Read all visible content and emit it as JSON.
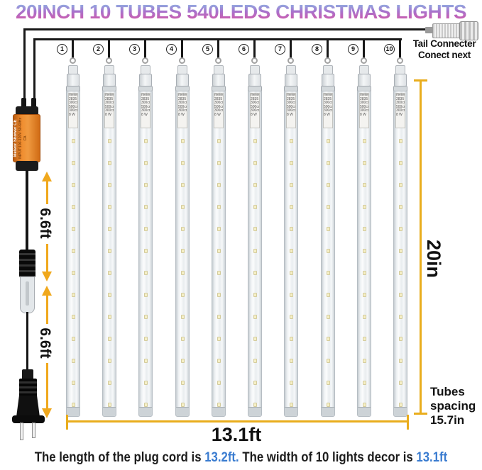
{
  "title": "20INCH 10 TUBES 540LEDS CHRISTMAS LIGHTS",
  "tail_connector": {
    "line1": "Tail Connecter",
    "line2": "Conect next"
  },
  "tubes": {
    "count": 10,
    "numbers": [
      "1",
      "2",
      "3",
      "4",
      "5",
      "6",
      "7",
      "8",
      "9",
      "10"
    ],
    "label_lines": [
      "meteor",
      "2835 S",
      "300cm",
      "500cm",
      "300cm",
      "8 W"
    ]
  },
  "adapter": {
    "brand": "Meteor Shower CE",
    "specs": "INPUT:100-120V 50-60Hz CA"
  },
  "measurements": {
    "cord_segment1": "6.6ft",
    "cord_segment2": "6.6ft",
    "tube_length": "20in",
    "total_width": "13.1ft",
    "spacing_label": [
      "Tubes",
      "spacing",
      "15.7in"
    ]
  },
  "footer": {
    "part1": "The length of the plug cord is ",
    "value1": "13.2ft.",
    "part2": " The width of 10 lights decor is ",
    "value2": "13.1ft"
  },
  "colors": {
    "measure_orange": "#f0a81d",
    "accent_blue": "#3a7cd0",
    "adapter_orange": "#ef8c2e",
    "title_gradient_top": "#85c6ea",
    "title_gradient_bottom": "#e04f9e",
    "wire_black": "#181818"
  }
}
